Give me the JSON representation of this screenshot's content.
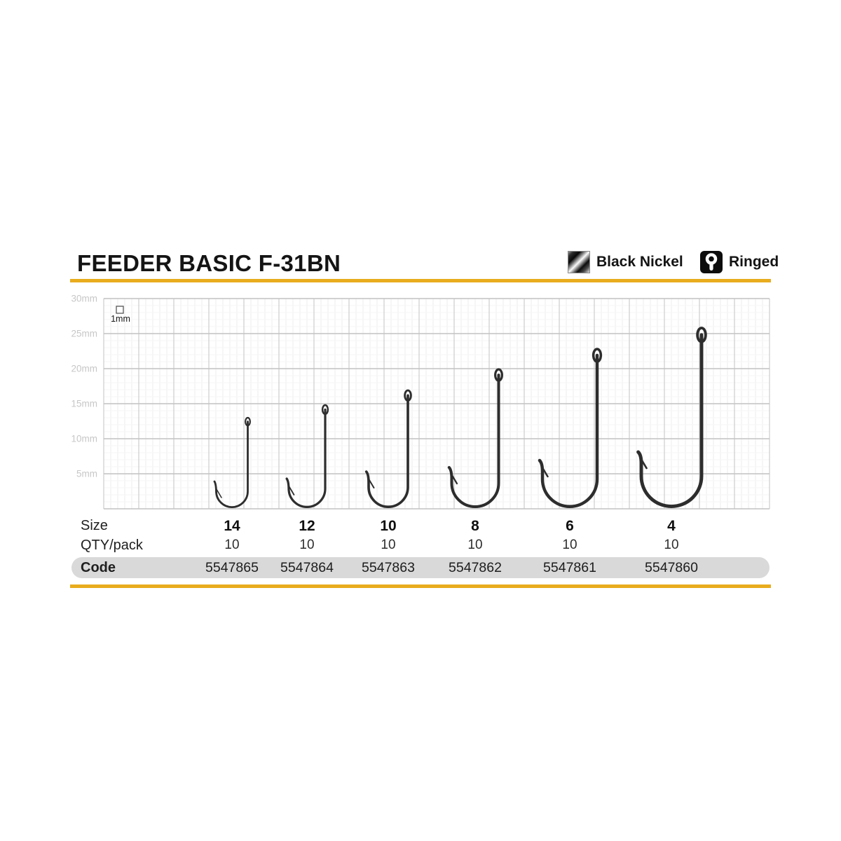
{
  "header": {
    "title": "FEEDER BASIC F-31BN",
    "finish_label": "Black Nickel",
    "eye_label": "Ringed"
  },
  "colors": {
    "accent_yellow": "#E8AC1E",
    "code_bar_gray": "#D9D9D9",
    "hook_metal": "#2D2D2D",
    "grid_major": "#C2C2C2",
    "grid_minor": "#EDEDED",
    "axis_label_gray": "#C7C7C7"
  },
  "scale_marker": {
    "label": "1mm"
  },
  "axis_labels": [
    "30mm",
    "25mm",
    "20mm",
    "15mm",
    "10mm",
    "5mm"
  ],
  "table": {
    "size_label": "Size",
    "qty_label": "QTY/pack",
    "code_label": "Code"
  },
  "chart_data": {
    "type": "table",
    "title": "FEEDER BASIC F-31BN hook size chart",
    "y_axis_unit": "mm",
    "y_axis_ticks_mm": [
      30,
      25,
      20,
      15,
      10,
      5
    ],
    "grid_unit_mm": 1,
    "hooks": [
      {
        "size": "14",
        "qty": "10",
        "code": "5547865",
        "length_mm": 13.0,
        "gap_mm": 4.5,
        "point_mm": 3.9
      },
      {
        "size": "12",
        "qty": "10",
        "code": "5547864",
        "length_mm": 14.8,
        "gap_mm": 5.2,
        "point_mm": 4.3
      },
      {
        "size": "10",
        "qty": "10",
        "code": "5547863",
        "length_mm": 16.9,
        "gap_mm": 5.6,
        "point_mm": 5.3
      },
      {
        "size": "8",
        "qty": "10",
        "code": "5547862",
        "length_mm": 19.9,
        "gap_mm": 6.7,
        "point_mm": 5.9
      },
      {
        "size": "6",
        "qty": "10",
        "code": "5547861",
        "length_mm": 22.8,
        "gap_mm": 7.8,
        "point_mm": 6.9
      },
      {
        "size": "4",
        "qty": "10",
        "code": "5547860",
        "length_mm": 25.8,
        "gap_mm": 8.6,
        "point_mm": 8.1
      }
    ]
  }
}
